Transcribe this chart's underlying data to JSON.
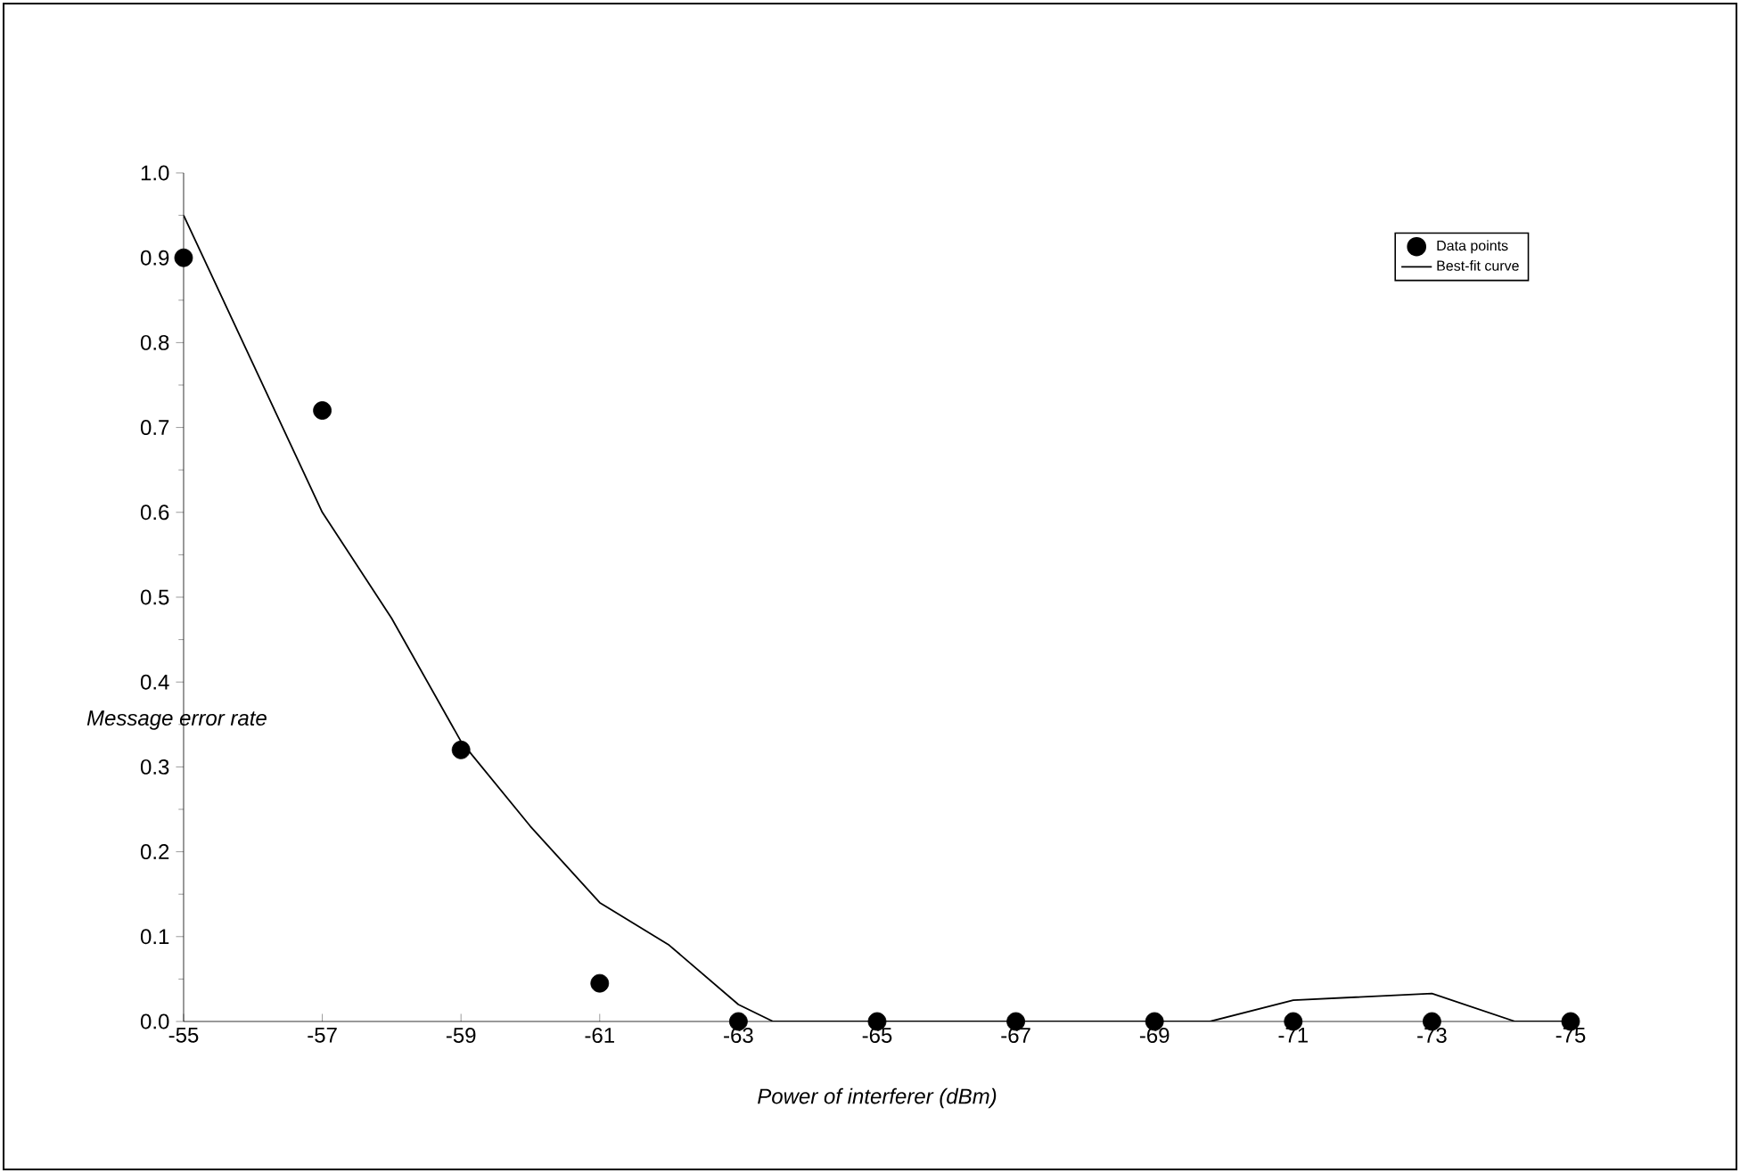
{
  "chart_data": {
    "type": "scatter",
    "xlabel": "Power of interferer (dBm)",
    "ylabel": "Message error rate",
    "xlim": [
      -55,
      -75
    ],
    "xticks": [
      -55,
      -57,
      -59,
      -61,
      -63,
      -65,
      -67,
      -69,
      -71,
      -73,
      -75
    ],
    "ylim": [
      0,
      1.0
    ],
    "yticks": [
      {
        "value": 0,
        "label": "0.0"
      },
      0.1,
      0.2,
      0.3,
      0.4,
      0.5,
      0.6,
      0.7,
      0.8,
      0.9,
      {
        "value": 1.0,
        "label": "1.0"
      }
    ],
    "legend": "top right",
    "grid": false,
    "series": [
      {
        "name": "Data points",
        "marker": "circle",
        "color": "#000000",
        "x": [
          -55,
          -57,
          -59,
          -61,
          -63,
          -65,
          -67,
          -69,
          -71,
          -73,
          -75
        ],
        "values": [
          0.9,
          0.72,
          0.32,
          0.045,
          0,
          0,
          0,
          0,
          0,
          0,
          0
        ]
      },
      {
        "name": "Best-fit curve",
        "type": "line",
        "marker": "none",
        "line_style": "solid",
        "color": "#000000",
        "x": [
          -55,
          -57,
          -58,
          -59,
          -60,
          -61,
          -62,
          -63,
          -63.5,
          -69.8,
          -71,
          -73,
          -74.2,
          -75
        ],
        "values": [
          0.95,
          0.6,
          0.475,
          0.33,
          0.23,
          0.14,
          0.09,
          0.02,
          0,
          0,
          0.025,
          0.033,
          0,
          0
        ]
      }
    ]
  }
}
